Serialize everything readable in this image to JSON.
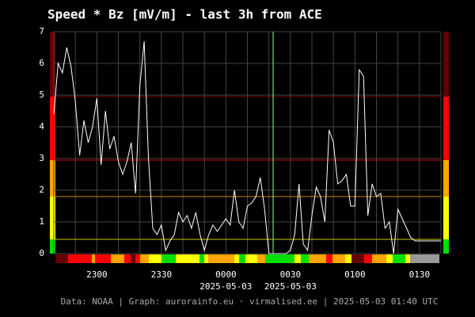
{
  "chart_data": {
    "type": "line",
    "title": "Speed * Bz [mV/m] - last 3h from ACE",
    "footer": "Data: NOAA | Graph: aurorainfo.eu · virmalised.ee | 2025-05-03 01:40 UTC",
    "categories": [
      null,
      null,
      null,
      null,
      null,
      null,
      null,
      null,
      null,
      null,
      "2300",
      null,
      null,
      null,
      null,
      null,
      null,
      null,
      null,
      null,
      null,
      null,
      null,
      null,
      null,
      "2330",
      null,
      null,
      null,
      null,
      null,
      null,
      null,
      null,
      null,
      null,
      null,
      null,
      null,
      null,
      "0000",
      null,
      null,
      null,
      null,
      null,
      null,
      null,
      null,
      null,
      null,
      null,
      null,
      null,
      null,
      "0030",
      null,
      null,
      null,
      null,
      null,
      null,
      null,
      null,
      null,
      null,
      null,
      null,
      null,
      null,
      "0100",
      null,
      null,
      null,
      null,
      null,
      null,
      null,
      null,
      null,
      null,
      null,
      null,
      null,
      null,
      "0130",
      null,
      null,
      null,
      null,
      null
    ],
    "category_dates": [
      null,
      null,
      null,
      null,
      null,
      null,
      null,
      null,
      null,
      null,
      null,
      null,
      null,
      null,
      null,
      null,
      null,
      null,
      null,
      null,
      null,
      null,
      null,
      null,
      null,
      null,
      null,
      null,
      null,
      null,
      null,
      null,
      null,
      null,
      null,
      null,
      null,
      null,
      null,
      null,
      "2025-05-03",
      null,
      null,
      null,
      null,
      null,
      null,
      null,
      null,
      null,
      null,
      null,
      null,
      null,
      null,
      "2025-05-03",
      null,
      null,
      null,
      null,
      null,
      null,
      null,
      null,
      null,
      null,
      null,
      null,
      null,
      null,
      null,
      null,
      null,
      null,
      null,
      null,
      null,
      null,
      null,
      null,
      null,
      null,
      null,
      null,
      null,
      null,
      null,
      null,
      null,
      null,
      null
    ],
    "series": [
      {
        "color": "#ffffff",
        "values": [
          4.4,
          6.0,
          5.7,
          6.5,
          5.9,
          4.8,
          3.1,
          4.2,
          3.5,
          4.0,
          4.9,
          2.8,
          4.5,
          3.3,
          3.7,
          2.9,
          2.5,
          2.9,
          3.5,
          1.9,
          5.3,
          6.7,
          3.0,
          0.8,
          0.6,
          0.9,
          0.1,
          0.4,
          0.6,
          1.3,
          1.0,
          1.2,
          0.8,
          1.3,
          0.6,
          0.1,
          0.6,
          0.9,
          0.7,
          0.9,
          1.1,
          0.9,
          2.0,
          1.0,
          0.8,
          1.5,
          1.6,
          1.8,
          2.4,
          1.4,
          0.0,
          0.0,
          0.0,
          0.0,
          0.0,
          0.1,
          0.6,
          2.2,
          0.3,
          0.1,
          1.2,
          2.1,
          1.8,
          1.0,
          3.9,
          3.5,
          2.2,
          2.3,
          2.5,
          1.5,
          1.5,
          5.8,
          5.6,
          1.2,
          2.2,
          1.8,
          1.9,
          0.8,
          1.0,
          0.0,
          1.4,
          1.1,
          0.8,
          0.5,
          0.4,
          0.4,
          0.4,
          0.4,
          0.4,
          0.4,
          0.4
        ]
      }
    ],
    "ylim": [
      0,
      7
    ],
    "yticks": [
      0,
      1,
      2,
      3,
      4,
      5,
      6,
      7
    ],
    "grid": true,
    "levels": [
      0.45,
      1.8,
      2.95,
      4.95
    ],
    "level_colors": [
      "#c8c800",
      "#c88400",
      "#c80000",
      "#780000"
    ],
    "band_colors": [
      "#00e000",
      "#ffff00",
      "#ffa500",
      "#ff0000",
      "#640000"
    ]
  }
}
